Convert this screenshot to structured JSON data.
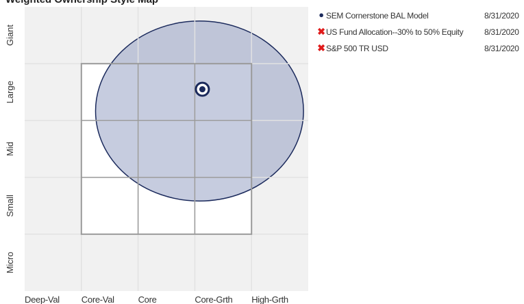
{
  "chart_title": "Weighted Ownership Style Map",
  "legend": [
    {
      "marker": "dot-icon",
      "symbol": "●",
      "name": "SEM Cornerstone BAL Model",
      "date": "8/31/2020"
    },
    {
      "marker": "x-icon",
      "symbol": "✖",
      "name": "US Fund Allocation--30% to 50% Equity",
      "date": "8/31/2020"
    },
    {
      "marker": "x-icon",
      "symbol": "✖",
      "name": "S&P 500 TR USD",
      "date": "8/31/2020"
    }
  ],
  "chart_data": {
    "type": "scatter",
    "title": "Weighted Ownership Style Map",
    "x_axis": {
      "categories": [
        "Deep-Val",
        "Core-Val",
        "Core",
        "Core-Grth",
        "High-Grth"
      ],
      "range": [
        -1.5,
        1.5
      ]
    },
    "y_axis": {
      "categories": [
        "Micro",
        "Small",
        "Mid",
        "Large",
        "Giant"
      ],
      "range": [
        -1.5,
        1.5
      ]
    },
    "series": [
      {
        "name": "SEM Cornerstone BAL Model",
        "point": {
          "x": 0.38,
          "y": 0.63
        },
        "ownership_zone": {
          "cx": 0.35,
          "cy": 0.4,
          "rx": 1.1,
          "ry": 0.95
        },
        "color": "#1b2a5c",
        "zone_fill": "#8e9abf"
      }
    ],
    "grid": true,
    "colors": {
      "outer_band": "#f1f1f1",
      "grid_line": "#e2e2e2",
      "core_box": "#9a9a9a"
    }
  }
}
